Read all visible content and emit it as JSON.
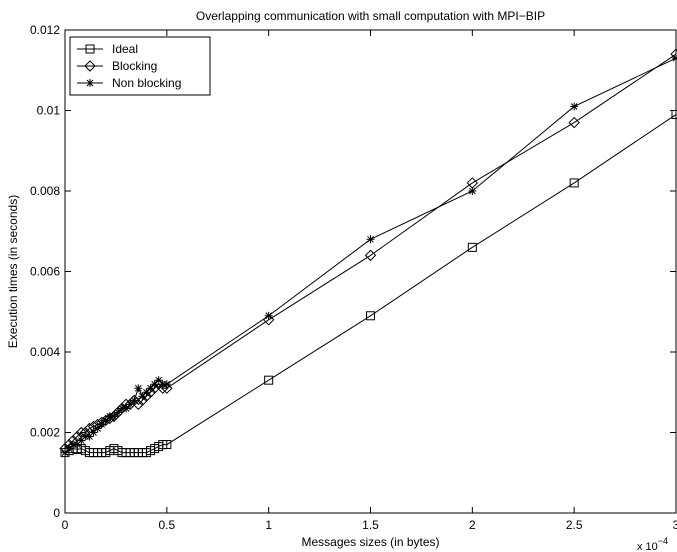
{
  "chart_data": {
    "type": "line",
    "title": "Overlapping communication with small computation with MPI−BIP",
    "xlabel": "Messages sizes (in bytes)",
    "ylabel": "Execution times (in seconds)",
    "x_exponent_label": "x 10",
    "x_exponent_power": "−4",
    "xlim": [
      0,
      3
    ],
    "ylim": [
      0,
      0.012
    ],
    "x_ticks": [
      0,
      0.5,
      1,
      1.5,
      2,
      2.5,
      3
    ],
    "x_tick_labels": [
      "0",
      "0.5",
      "1",
      "1.5",
      "2",
      "2.5",
      "3"
    ],
    "y_ticks": [
      0,
      0.002,
      0.004,
      0.006,
      0.008,
      0.01,
      0.012
    ],
    "y_tick_labels": [
      "0",
      "0.002",
      "0.004",
      "0.006",
      "0.008",
      "0.01",
      "0.012"
    ],
    "grid": false,
    "legend_position": "top-left",
    "series": [
      {
        "name": "Ideal",
        "marker": "square",
        "x": [
          0,
          0.02,
          0.04,
          0.06,
          0.08,
          0.1,
          0.12,
          0.14,
          0.16,
          0.18,
          0.2,
          0.22,
          0.24,
          0.26,
          0.28,
          0.3,
          0.32,
          0.34,
          0.36,
          0.38,
          0.4,
          0.42,
          0.44,
          0.46,
          0.48,
          0.5,
          1,
          1.5,
          2,
          2.5,
          3
        ],
        "y": [
          0.0015,
          0.00155,
          0.0016,
          0.00158,
          0.0016,
          0.00155,
          0.0015,
          0.0015,
          0.0015,
          0.0015,
          0.0015,
          0.00155,
          0.0016,
          0.00155,
          0.0015,
          0.0015,
          0.0015,
          0.0015,
          0.0015,
          0.0015,
          0.0015,
          0.00155,
          0.0016,
          0.00165,
          0.0017,
          0.0017,
          0.0033,
          0.0049,
          0.0066,
          0.0082,
          0.0099
        ]
      },
      {
        "name": "Blocking",
        "marker": "diamond",
        "x": [
          0,
          0.02,
          0.04,
          0.06,
          0.08,
          0.1,
          0.12,
          0.14,
          0.16,
          0.18,
          0.2,
          0.22,
          0.24,
          0.26,
          0.28,
          0.3,
          0.32,
          0.34,
          0.36,
          0.38,
          0.4,
          0.42,
          0.44,
          0.46,
          0.48,
          0.5,
          1,
          1.5,
          2,
          2.5,
          3
        ],
        "y": [
          0.0016,
          0.0017,
          0.0018,
          0.0019,
          0.002,
          0.002,
          0.0021,
          0.00215,
          0.0022,
          0.00225,
          0.0023,
          0.00235,
          0.0024,
          0.0025,
          0.0026,
          0.0027,
          0.0027,
          0.0028,
          0.0027,
          0.0028,
          0.0029,
          0.003,
          0.0031,
          0.0032,
          0.0031,
          0.0031,
          0.0048,
          0.0064,
          0.0082,
          0.0097,
          0.0114
        ]
      },
      {
        "name": "Non blocking",
        "marker": "asterisk",
        "x": [
          0,
          0.02,
          0.04,
          0.06,
          0.08,
          0.1,
          0.12,
          0.14,
          0.16,
          0.18,
          0.2,
          0.22,
          0.24,
          0.26,
          0.28,
          0.3,
          0.32,
          0.34,
          0.36,
          0.38,
          0.4,
          0.42,
          0.44,
          0.46,
          0.48,
          0.5,
          1,
          1.5,
          2,
          2.5,
          3
        ],
        "y": [
          0.0015,
          0.0016,
          0.0017,
          0.0017,
          0.0018,
          0.0019,
          0.0019,
          0.002,
          0.0021,
          0.0022,
          0.0023,
          0.0024,
          0.0024,
          0.0025,
          0.0026,
          0.0026,
          0.0027,
          0.0028,
          0.0031,
          0.0029,
          0.003,
          0.0031,
          0.0032,
          0.0033,
          0.0032,
          0.0032,
          0.0049,
          0.0068,
          0.008,
          0.0101,
          0.0113
        ]
      }
    ]
  }
}
